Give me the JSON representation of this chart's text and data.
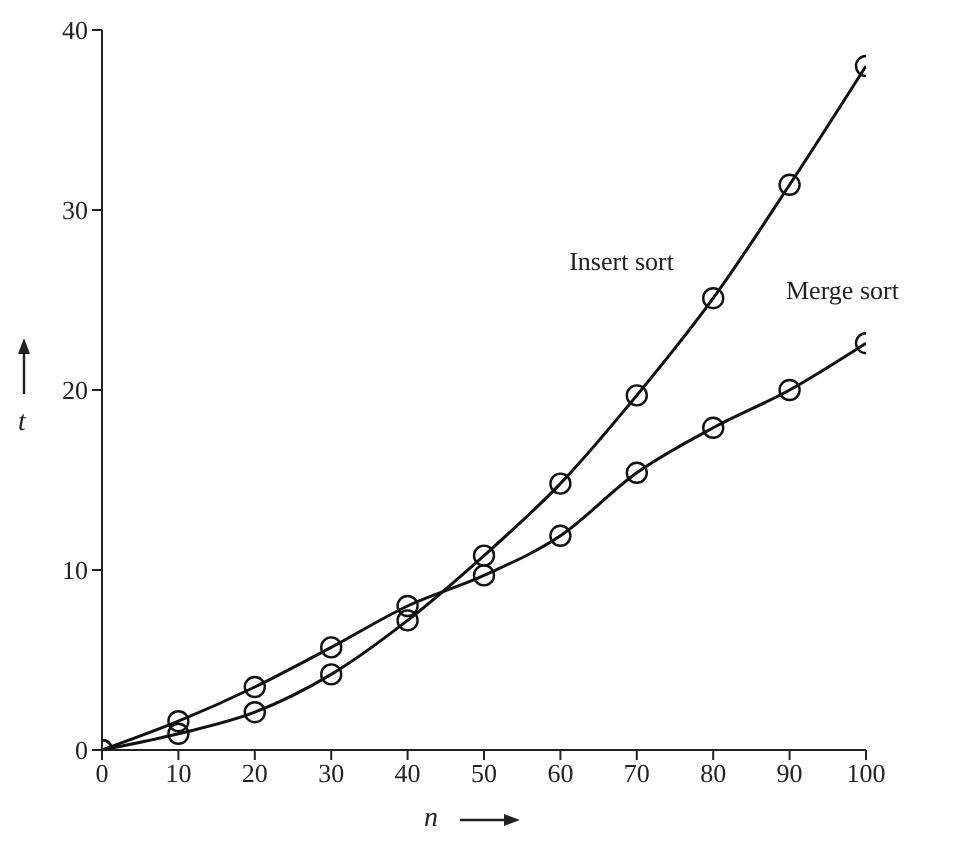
{
  "chart_data": {
    "type": "line",
    "xlabel": "n",
    "ylabel": "t",
    "x": [
      0,
      10,
      20,
      30,
      40,
      50,
      60,
      70,
      80,
      90,
      100
    ],
    "series": [
      {
        "name": "Insert sort",
        "color": "#111111",
        "values": [
          0,
          0.9,
          2.1,
          4.2,
          7.2,
          10.8,
          14.8,
          19.7,
          25.1,
          31.4,
          38
        ]
      },
      {
        "name": "Merge sort",
        "color": "#111111",
        "values": [
          0,
          1.6,
          3.5,
          5.7,
          8,
          9.7,
          11.9,
          15.4,
          17.9,
          20,
          22.6
        ]
      }
    ],
    "xlim": [
      0,
      100
    ],
    "xticks": [
      0,
      10,
      20,
      30,
      40,
      50,
      60,
      70,
      80,
      90,
      100
    ],
    "ylim": [
      0,
      40
    ],
    "yticks": [
      0,
      10,
      20,
      30,
      40
    ],
    "grid": false,
    "legend": false,
    "marker": "circle",
    "line_style": "solid"
  }
}
